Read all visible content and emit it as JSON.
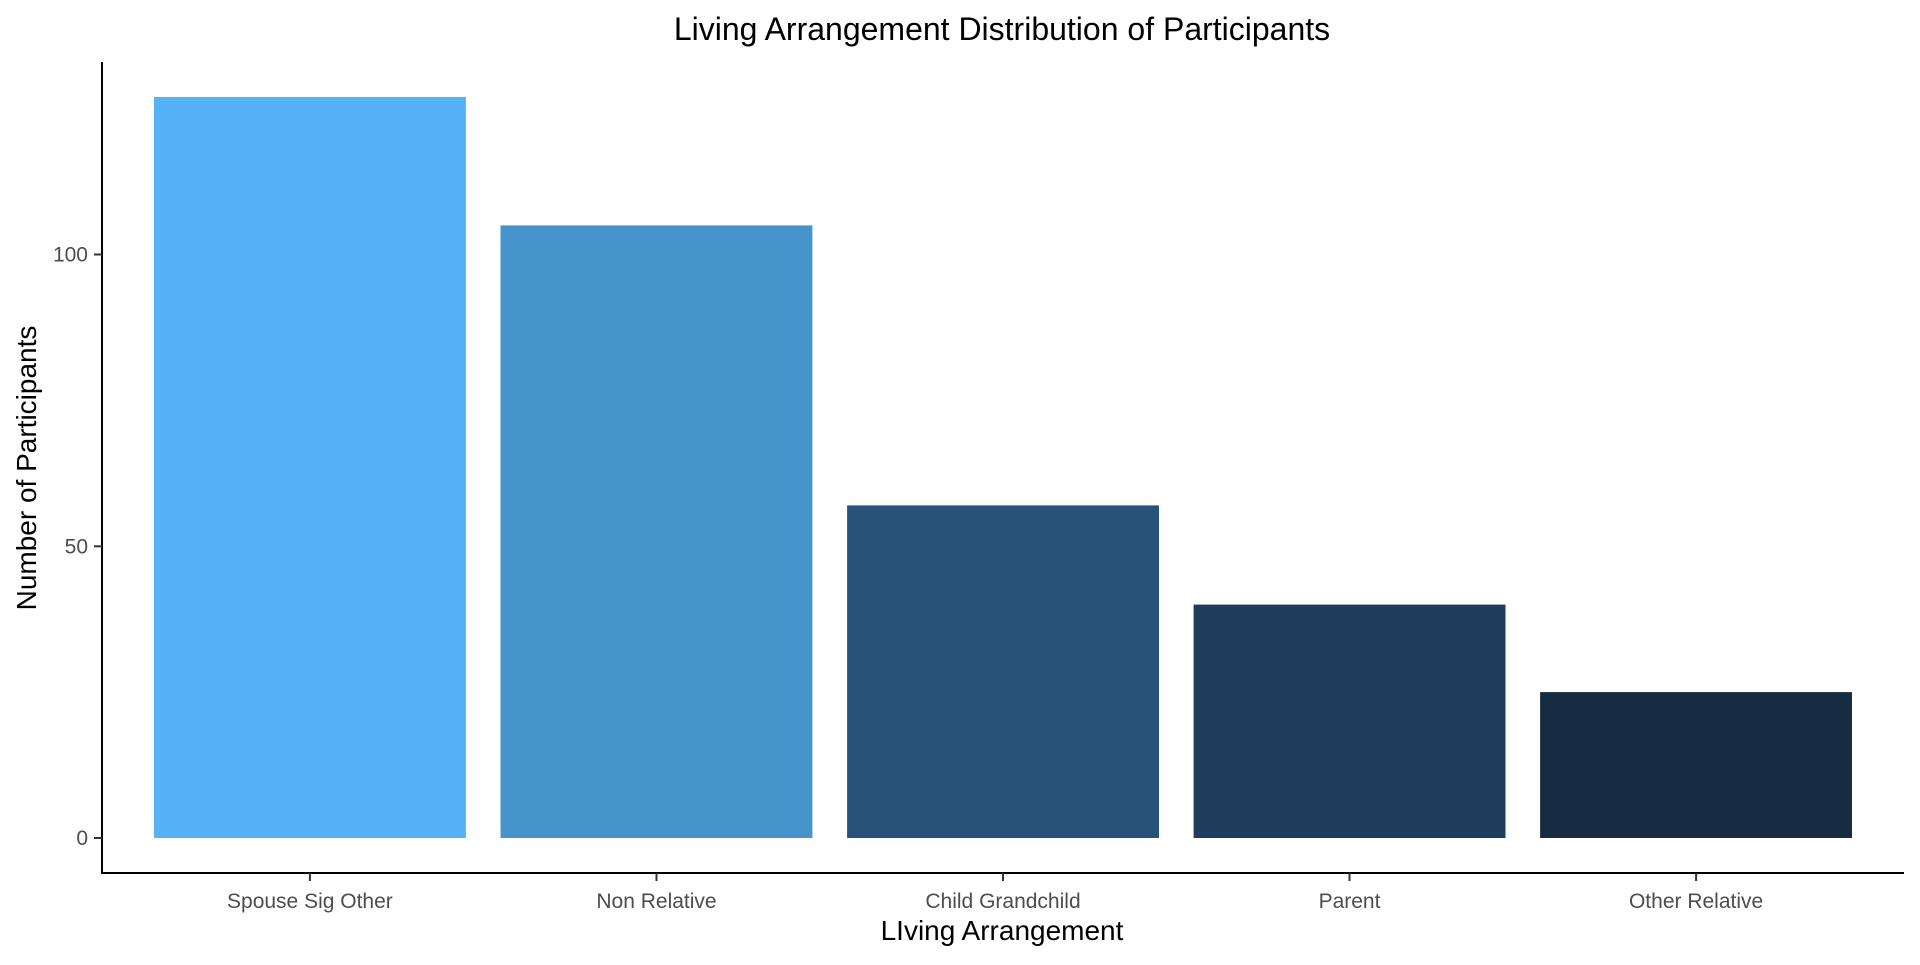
{
  "chart_data": {
    "type": "bar",
    "title": "Living Arrangement Distribution of Participants",
    "xlabel": "LIving Arrangement",
    "ylabel": "Number of Participants",
    "categories": [
      "Spouse Sig Other",
      "Non Relative",
      "Child Grandchild",
      "Parent",
      "Other Relative"
    ],
    "values": [
      127,
      105,
      57,
      40,
      25
    ],
    "colors": [
      "#56B1F7",
      "#4793CC",
      "#265377",
      "#1F3C5C",
      "#172B43"
    ],
    "yticks": [
      0,
      50,
      100
    ],
    "ylim": [
      -6,
      133
    ],
    "grid": false,
    "legend": "none"
  }
}
